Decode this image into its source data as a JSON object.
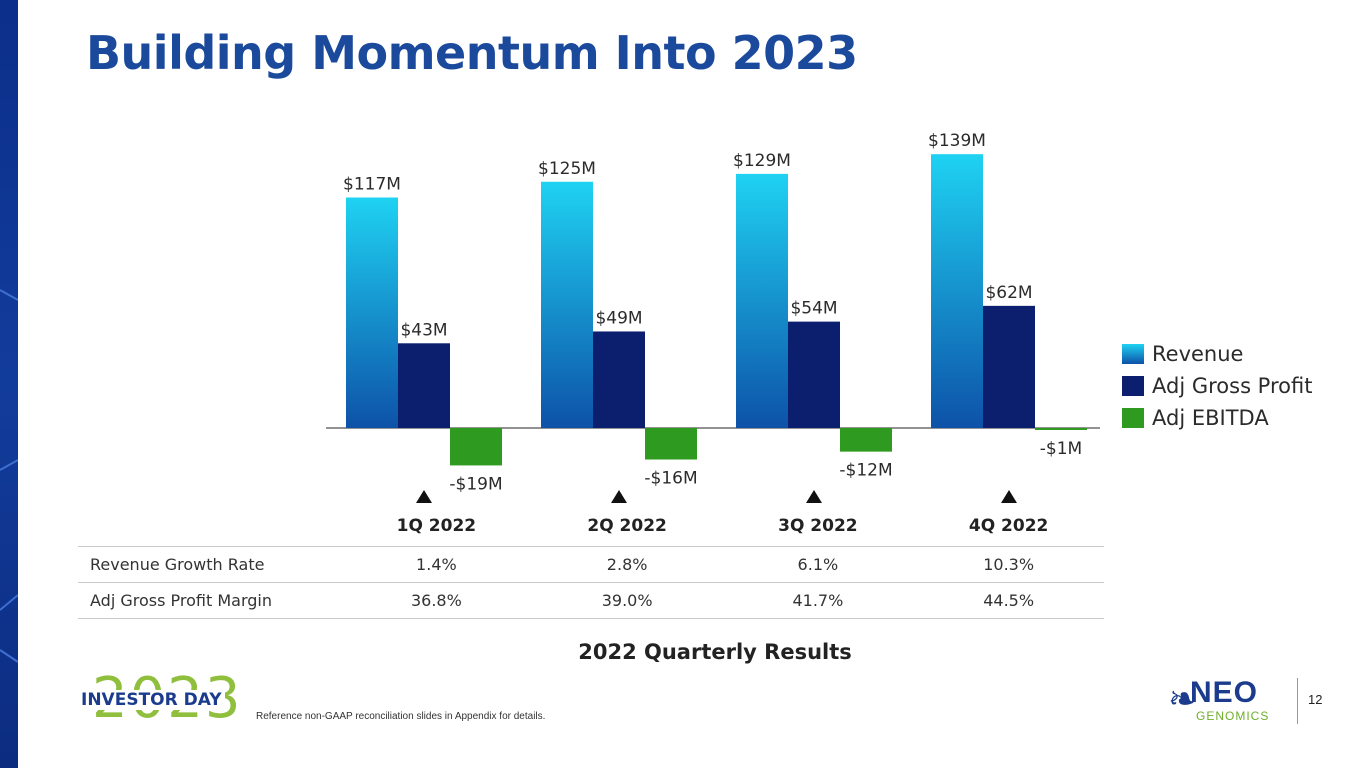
{
  "slide": {
    "title": "Building Momentum Into 2023",
    "subtitle": "2022 Quarterly Results",
    "footnote": "Reference non-GAAP reconciliation slides in Appendix for details.",
    "page_number": "12",
    "event_logo": {
      "year": "2023",
      "name": "INVESTOR DAY"
    },
    "brand_logo": {
      "name": "NEO",
      "sub": "GENOMICS"
    }
  },
  "chart_data": {
    "type": "bar",
    "categories": [
      "1Q 2022",
      "2Q 2022",
      "3Q 2022",
      "4Q 2022"
    ],
    "series": [
      {
        "name": "Revenue",
        "values": [
          117,
          125,
          129,
          139
        ],
        "labels": [
          "$117M",
          "$125M",
          "$129M",
          "$139M"
        ],
        "color": "#1aa9e0"
      },
      {
        "name": "Adj Gross Profit",
        "values": [
          43,
          49,
          54,
          62
        ],
        "labels": [
          "$43M",
          "$49M",
          "$54M",
          "$62M"
        ],
        "color": "#0c1f6e"
      },
      {
        "name": "Adj EBITDA",
        "values": [
          -19,
          -16,
          -12,
          -1
        ],
        "labels": [
          "-$19M",
          "-$16M",
          "-$12M",
          "-$1M"
        ],
        "color": "#2e9a1f"
      }
    ],
    "unit": "M",
    "legend_position": "right",
    "grid": false,
    "indicator": "up-triangle"
  },
  "table": {
    "headers": [
      "",
      "1Q 2022",
      "2Q 2022",
      "3Q 2022",
      "4Q 2022"
    ],
    "rows": [
      {
        "label": "Revenue Growth Rate",
        "values": [
          "1.4%",
          "2.8%",
          "6.1%",
          "10.3%"
        ]
      },
      {
        "label": "Adj Gross Profit Margin",
        "values": [
          "36.8%",
          "39.0%",
          "41.7%",
          "44.5%"
        ]
      }
    ]
  }
}
